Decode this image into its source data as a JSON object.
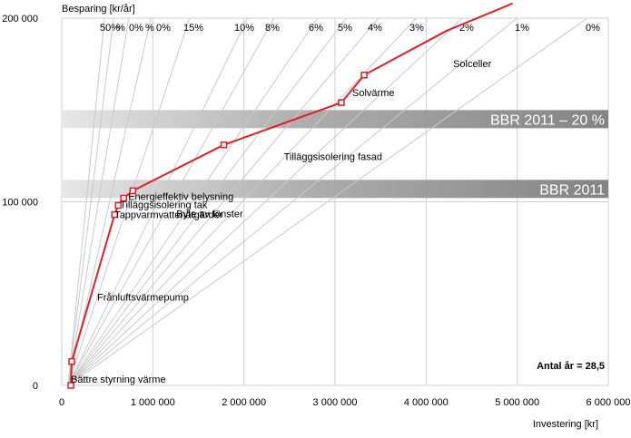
{
  "chart_data": {
    "type": "line",
    "ylabel": "Besparing [kr/år]",
    "xlabel": "Investering [kr]",
    "xlim": [
      0,
      6000000
    ],
    "ylim": [
      0,
      200000
    ],
    "x_ticks": [
      {
        "value": 0,
        "label": "0"
      },
      {
        "value": 1000000,
        "label": "1 000 000"
      },
      {
        "value": 2000000,
        "label": "2 000 000"
      },
      {
        "value": 3000000,
        "label": "3 000 000"
      },
      {
        "value": 4000000,
        "label": "4 000 000"
      },
      {
        "value": 5000000,
        "label": "5 000 000"
      },
      {
        "value": 6000000,
        "label": "6 000 000"
      }
    ],
    "y_ticks": [
      {
        "value": 0,
        "label": "0"
      },
      {
        "value": 100000,
        "label": "100 000"
      },
      {
        "value": 200000,
        "label": "200 000"
      }
    ],
    "grid": true,
    "line_color": "#e31e24",
    "series": [
      {
        "points": [
          {
            "x": 100000,
            "y": 0,
            "label": "Bättre styrning värme"
          },
          {
            "x": 110000,
            "y": 13000,
            "label": "Frånluftsvärmepump"
          },
          {
            "x": 580000,
            "y": 93000,
            "label": "Tappvarmvattenåtgärder"
          },
          {
            "x": 620000,
            "y": 98000,
            "label": "Tilläggsisolering tak"
          },
          {
            "x": 680000,
            "y": 102000,
            "label": "Energieffektiv belysning"
          },
          {
            "x": 780000,
            "y": 106000,
            "label": "Byte av fönster"
          },
          {
            "x": 1780000,
            "y": 131000,
            "label": "Tilläggsisolering fasad"
          },
          {
            "x": 3070000,
            "y": 154000,
            "label": "Solvärme"
          },
          {
            "x": 3320000,
            "y": 169000,
            "label": "Solceller"
          },
          {
            "x": 4220000,
            "y": 193000,
            "label": ""
          },
          {
            "x": 4950000,
            "y": 208000,
            "label": ""
          }
        ]
      }
    ],
    "bands": [
      {
        "label": "BBR 2011 – 20 %",
        "y": 145000
      },
      {
        "label": "BBR 2011",
        "y": 107000
      }
    ],
    "rate_lines": [
      {
        "label": "50%",
        "rate": 0.5
      },
      {
        "label": "40%",
        "rate": 0.4
      },
      {
        "label": "30%",
        "rate": 0.3
      },
      {
        "label": "20%",
        "rate": 0.22
      },
      {
        "label": "15%",
        "rate": 0.15
      },
      {
        "label": "10%",
        "rate": 0.1015
      },
      {
        "label": "8%",
        "rate": 0.0885
      },
      {
        "label": "6%",
        "rate": 0.073
      },
      {
        "label": "5%",
        "rate": 0.0655
      },
      {
        "label": "4%",
        "rate": 0.0587
      },
      {
        "label": "3%",
        "rate": 0.0523
      },
      {
        "label": "2%",
        "rate": 0.0462
      },
      {
        "label": "1%",
        "rate": 0.0406
      },
      {
        "label": "0%",
        "rate": 0.0351
      }
    ],
    "rate_labels_display": [
      "50%",
      "%",
      "0%",
      "%",
      "0%",
      "15%",
      "10%",
      "8%",
      "6%",
      "5%",
      "4%",
      "3%",
      "2%",
      "1%",
      "0%"
    ],
    "annotation": "Antal år = 28,5"
  }
}
